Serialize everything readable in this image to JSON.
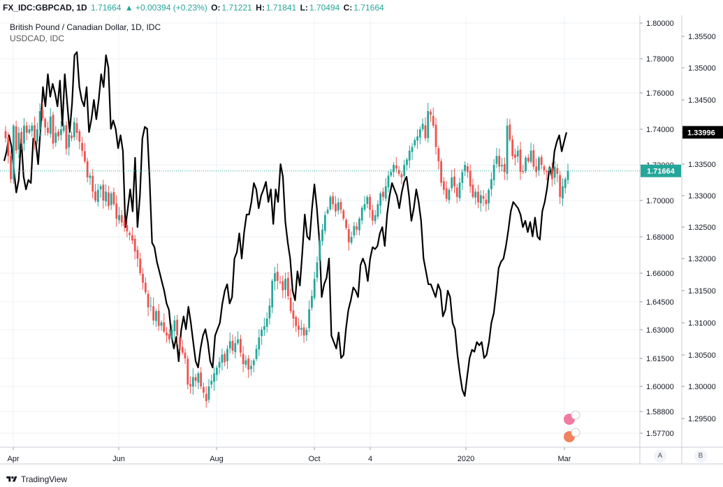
{
  "header": {
    "symbol": "FX_IDC:GBPCAD, 1D",
    "last": "1.71664",
    "change": "▲ +0.00394 (+0.23%)",
    "o_label": "O:",
    "o_val": "1.71221",
    "h_label": "H:",
    "h_val": "1.71841",
    "l_label": "L:",
    "l_val": "1.70494",
    "c_label": "C:",
    "c_val": "1.71664"
  },
  "legend": {
    "title": "British Pound / Canadian Dollar, 1D, IDC",
    "compare": "USDCAD, IDC"
  },
  "footer": {
    "brand": "TradingView",
    "btn_a": "A",
    "btn_b": "B"
  },
  "colors": {
    "up": "#26a69a",
    "down": "#ef5350",
    "compare_line": "#000000",
    "price_line": "#26a69a"
  },
  "chart_data": {
    "type": "candlestick",
    "title": "British Pound / Canadian Dollar, 1D, IDC",
    "xlabel": "",
    "ylabel": "",
    "x_ticks": [
      "Apr",
      "Jun",
      "Aug",
      "Oct",
      "4",
      "2020",
      "Mar"
    ],
    "y_left_ticks": [
      "1.80000",
      "1.78000",
      "1.76000",
      "1.74000",
      "1.72000",
      "1.70000",
      "1.68000",
      "1.66000",
      "1.64500",
      "1.63000",
      "1.61500",
      "1.60000",
      "1.58800",
      "1.57700"
    ],
    "y_right_ticks": [
      "1.35500",
      "1.35000",
      "1.34500",
      "1.34000",
      "1.33500",
      "1.33000",
      "1.32500",
      "1.32000",
      "1.31500",
      "1.31000",
      "1.30500",
      "1.30000",
      "1.29500"
    ],
    "current_price": "1.71664",
    "compare_current": "1.33996",
    "grid": true,
    "series": [
      {
        "name": "FX_IDC:GBPCAD",
        "kind": "candles",
        "close_path": [
          1.735,
          1.725,
          1.712,
          1.742,
          1.728,
          1.738,
          1.732,
          1.742,
          1.738,
          1.74,
          1.742,
          1.733,
          1.74,
          1.75,
          1.746,
          1.741,
          1.738,
          1.747,
          1.732,
          1.738,
          1.736,
          1.74,
          1.742,
          1.729,
          1.737,
          1.735,
          1.744,
          1.738,
          1.733,
          1.728,
          1.722,
          1.713,
          1.714,
          1.705,
          1.7,
          1.706,
          1.708,
          1.7,
          1.705,
          1.697,
          1.704,
          1.698,
          1.69,
          1.692,
          1.688,
          1.686,
          1.683,
          1.681,
          1.678,
          1.672,
          1.668,
          1.66,
          1.655,
          1.65,
          1.642,
          1.643,
          1.635,
          1.64,
          1.632,
          1.634,
          1.629,
          1.627,
          1.625,
          1.63,
          1.635,
          1.627,
          1.62,
          1.618,
          1.615,
          1.601,
          1.6,
          1.605,
          1.603,
          1.607,
          1.6,
          1.597,
          1.593,
          1.6,
          1.603,
          1.607,
          1.61,
          1.613,
          1.617,
          1.613,
          1.62,
          1.624,
          1.619,
          1.623,
          1.625,
          1.618,
          1.612,
          1.614,
          1.609,
          1.611,
          1.614,
          1.62,
          1.626,
          1.63,
          1.632,
          1.636,
          1.643,
          1.656,
          1.66,
          1.656,
          1.655,
          1.651,
          1.657,
          1.648,
          1.64,
          1.636,
          1.632,
          1.63,
          1.631,
          1.627,
          1.63,
          1.641,
          1.648,
          1.657,
          1.666,
          1.678,
          1.684,
          1.692,
          1.695,
          1.702,
          1.698,
          1.694,
          1.699,
          1.695,
          1.69,
          1.685,
          1.677,
          1.68,
          1.686,
          1.684,
          1.69,
          1.696,
          1.698,
          1.702,
          1.695,
          1.689,
          1.692,
          1.698,
          1.704,
          1.702,
          1.708,
          1.714,
          1.716,
          1.72,
          1.718,
          1.715,
          1.713,
          1.72,
          1.723,
          1.728,
          1.73,
          1.734,
          1.736,
          1.74,
          1.743,
          1.735,
          1.75,
          1.748,
          1.742,
          1.73,
          1.722,
          1.71,
          1.706,
          1.701,
          1.706,
          1.713,
          1.708,
          1.702,
          1.71,
          1.716,
          1.72,
          1.716,
          1.708,
          1.702,
          1.705,
          1.699,
          1.703,
          1.701,
          1.698,
          1.706,
          1.712,
          1.72,
          1.725,
          1.719,
          1.72,
          1.716,
          1.742,
          1.734,
          1.725,
          1.724,
          1.728,
          1.716,
          1.716,
          1.724,
          1.722,
          1.728,
          1.719,
          1.716,
          1.724,
          1.72,
          1.717,
          1.716,
          1.718,
          1.712,
          1.719,
          1.715,
          1.702,
          1.708,
          1.712,
          1.71664
        ]
      },
      {
        "name": "USDCAD, IDC",
        "kind": "line",
        "values": [
          1.3355,
          1.337,
          1.3395,
          1.3378,
          1.334,
          1.3305,
          1.3325,
          1.339,
          1.333,
          1.331,
          1.3325,
          1.332,
          1.339,
          1.3385,
          1.335,
          1.3405,
          1.347,
          1.344,
          1.349,
          1.3455,
          1.3475,
          1.346,
          1.344,
          1.348,
          1.341,
          1.349,
          1.3445,
          1.34,
          1.3445,
          1.352,
          1.3525,
          1.347,
          1.345,
          1.344,
          1.347,
          1.34,
          1.342,
          1.345,
          1.342,
          1.345,
          1.349,
          1.347,
          1.352,
          1.35,
          1.3405,
          1.3418,
          1.3405,
          1.3375,
          1.3395,
          1.337,
          1.325,
          1.328,
          1.331,
          1.3275,
          1.336,
          1.325,
          1.33,
          1.339,
          1.3408,
          1.3405,
          1.3325,
          1.3225,
          1.3218,
          1.3195,
          1.318,
          1.3165,
          1.315,
          1.313,
          1.312,
          1.308,
          1.306,
          1.3078,
          1.304,
          1.3088,
          1.311,
          1.309,
          1.3125,
          1.31,
          1.307,
          1.304,
          1.303,
          1.306,
          1.308,
          1.309,
          1.307,
          1.304,
          1.303,
          1.308,
          1.309,
          1.31,
          1.313,
          1.315,
          1.316,
          1.313,
          1.314,
          1.32,
          1.321,
          1.324,
          1.32,
          1.3242,
          1.327,
          1.327,
          1.329,
          1.332,
          1.331,
          1.328,
          1.33,
          1.331,
          1.3322,
          1.329,
          1.331,
          1.3255,
          1.331,
          1.329,
          1.335,
          1.333,
          1.3258,
          1.3225,
          1.32,
          1.315,
          1.3135,
          1.318,
          1.3158,
          1.321,
          1.327,
          1.3235,
          1.323,
          1.328,
          1.3318,
          1.328,
          1.323,
          1.314,
          1.316,
          1.317,
          1.32,
          1.308,
          1.307,
          1.306,
          1.3085,
          1.3045,
          1.305,
          1.309,
          1.312,
          1.3135,
          1.3155,
          1.315,
          1.314,
          1.319,
          1.32,
          1.319,
          1.3165,
          1.32,
          1.3218,
          1.3215,
          1.322,
          1.324,
          1.325,
          1.322,
          1.327,
          1.33,
          1.332,
          1.331,
          1.33,
          1.328,
          1.3305,
          1.3322,
          1.333,
          1.33,
          1.326,
          1.328,
          1.331,
          1.329,
          1.326,
          1.32,
          1.318,
          1.316,
          1.316,
          1.315,
          1.314,
          1.316,
          1.315,
          1.311,
          1.312,
          1.315,
          1.314,
          1.31,
          1.309,
          1.305,
          1.302,
          1.2995,
          1.2985,
          1.3015,
          1.3045,
          1.3058,
          1.3055,
          1.307,
          1.3065,
          1.307,
          1.3045,
          1.305,
          1.307,
          1.31,
          1.3115,
          1.3148,
          1.3185,
          1.3195,
          1.32,
          1.322,
          1.3245,
          1.3275,
          1.329,
          1.3285,
          1.328,
          1.327,
          1.325,
          1.326,
          1.3242,
          1.3258,
          1.3235,
          1.3265,
          1.3235,
          1.323,
          1.3275,
          1.329,
          1.3312,
          1.3345,
          1.333,
          1.337,
          1.3385,
          1.3395,
          1.337,
          1.3385,
          1.33996
        ],
        "note_ranges": "left axis 1.577–1.800; right axis 1.295–1.3555"
      }
    ]
  }
}
